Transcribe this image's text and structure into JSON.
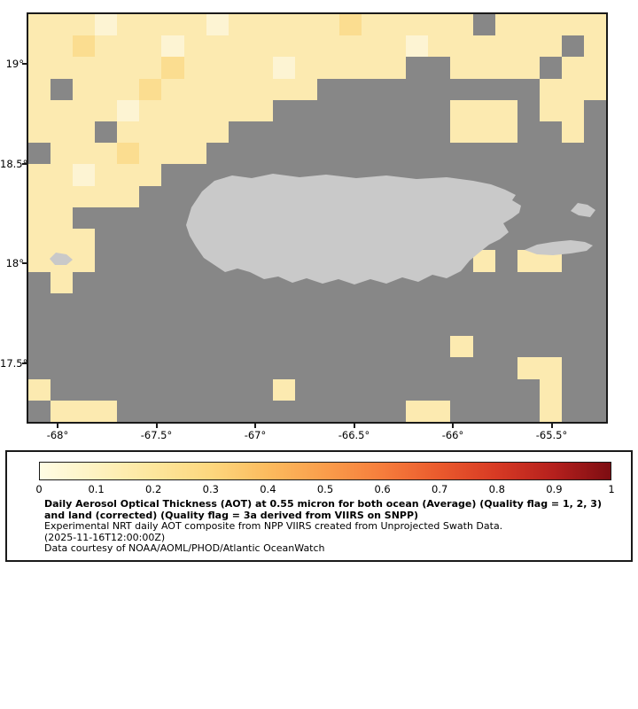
{
  "map": {
    "y_ticks": [
      "19°",
      "18.5°",
      "18°",
      "17.5°"
    ],
    "x_ticks": [
      "-68°",
      "-67.5°",
      "-67°",
      "-66.5°",
      "-66°",
      "-65.5°"
    ],
    "colors": {
      "no_data": "#878787",
      "land": "#c9c9c9",
      "frame": "#1a1a1a"
    },
    "palette": {
      "a": "#fdf4d3",
      "b": "#fceab0",
      "c": "#fbdd90"
    },
    "grid": [
      "bbbabbbbabbbbbcbbbbb.bbbbb",
      "bbcbbbabbbbbbbbbbabbbbbb.b",
      "bbbbbbcbbbbabbbbb..bbbb.bb",
      "b.bbbcbbbbbbb..........bbb",
      "bbbbabbbbbb........bbb.bb.",
      "bbb.bbbbb..........bbb..b.",
      ".bbbcbbb..................",
      "bbabbb....................",
      "bbbbb.....................",
      "bb........................",
      "bbb.......................",
      "bbb.................b.bb..",
      ".b........................",
      "..........................",
      "..........................",
      "...................b......",
      "......................bb..",
      "b..........b...........b..",
      ".bbb.............bb....b.."
    ]
  },
  "legend": {
    "ticks": [
      "0",
      "0.1",
      "0.2",
      "0.3",
      "0.4",
      "0.5",
      "0.6",
      "0.7",
      "0.8",
      "0.9",
      "1"
    ],
    "gradient": [
      "#fffce4",
      "#fef2c0",
      "#fde69c",
      "#fdd77e",
      "#fcbb5e",
      "#fa9d4b",
      "#f67d3c",
      "#ea5a2d",
      "#d73a24",
      "#b5201d",
      "#7d0d12"
    ],
    "title": "Daily Aerosol Optical Thickness (AOT) at 0.55 micron for both ocean (Average) (Quality flag = 1, 2, 3) and land (corrected) (Quality flag = 3a derived from VIIRS on SNPP)",
    "line2": "Experimental NRT daily AOT composite from NPP VIIRS created from Unprojected Swath Data.",
    "line3": "(2025-11-16T12:00:00Z)",
    "line4": "Data courtesy of NOAA/AOML/PHOD/Atlantic OceanWatch"
  },
  "chart_data": {
    "type": "heatmap",
    "title": "Daily Aerosol Optical Thickness (AOT) at 0.55 micron",
    "x_tick_values": [
      -68,
      -67.5,
      -67,
      -66.5,
      -66,
      -65.5
    ],
    "y_tick_values": [
      19,
      18.5,
      18,
      17.5
    ],
    "colorbar_ticks": [
      0,
      0.1,
      0.2,
      0.3,
      0.4,
      0.5,
      0.6,
      0.7,
      0.8,
      0.9,
      1
    ],
    "colorbar_range": [
      0,
      1
    ],
    "legend_position": "bottom"
  }
}
